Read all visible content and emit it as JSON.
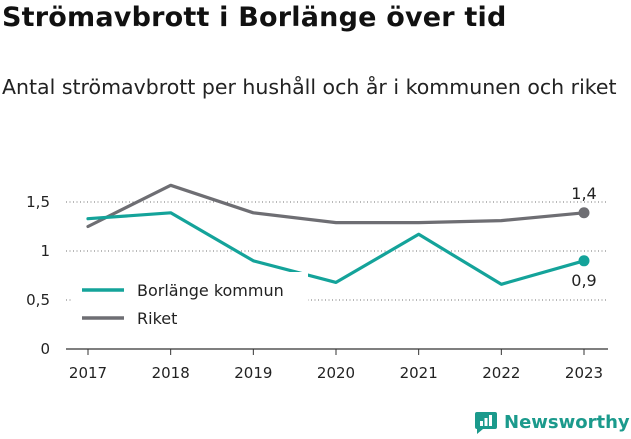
{
  "header": {
    "title": "Strömavbrott i Borlänge över tid",
    "subtitle": "Antal strömavbrott per hushåll och år i kommunen och riket"
  },
  "brand": {
    "name": "Newsworthy",
    "icon": "newsworthy-logo-icon"
  },
  "colors": {
    "borlange": "#14a39a",
    "riket": "#6e6e73",
    "grid": "#222222"
  },
  "chart_data": {
    "type": "line",
    "title": "Strömavbrott i Borlänge över tid",
    "subtitle": "Antal strömavbrott per hushåll och år i kommunen och riket",
    "x": [
      2017,
      2018,
      2019,
      2020,
      2021,
      2022,
      2023
    ],
    "x_tick_labels": [
      "2017",
      "2018",
      "2019",
      "2020",
      "2021",
      "2022",
      "2023"
    ],
    "y_ticks": [
      0,
      0.5,
      1,
      1.5
    ],
    "y_tick_labels": [
      "0",
      "0,5",
      "1",
      "1,5"
    ],
    "ylim": [
      0,
      1.5
    ],
    "xlabel": "",
    "ylabel": "",
    "legend_position": "lower-left",
    "series": [
      {
        "name": "Borlänge kommun",
        "color": "#14a39a",
        "values": [
          1.33,
          1.39,
          0.9,
          0.68,
          1.17,
          0.66,
          0.9
        ]
      },
      {
        "name": "Riket",
        "color": "#6e6e73",
        "values": [
          1.25,
          1.67,
          1.39,
          1.29,
          1.29,
          1.31,
          1.39
        ]
      }
    ],
    "annotations": [
      {
        "series": "Riket",
        "x": 2023,
        "text": "1,4",
        "position": "above"
      },
      {
        "series": "Borlänge kommun",
        "x": 2023,
        "text": "0,9",
        "position": "below"
      }
    ]
  }
}
